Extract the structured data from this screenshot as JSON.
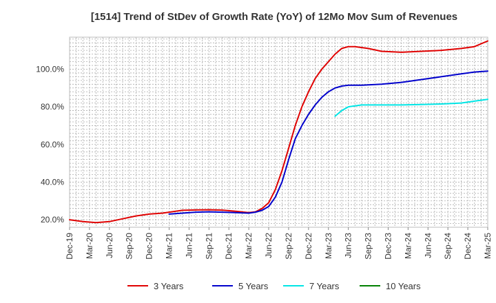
{
  "chart_data": {
    "type": "line",
    "title": "[1514]  Trend of StDev of Growth Rate (YoY) of 12Mo Mov Sum of Revenues",
    "xlabel": "",
    "ylabel": "",
    "x_ticks": [
      "Dec-19",
      "Mar-20",
      "Jun-20",
      "Sep-20",
      "Dec-20",
      "Mar-21",
      "Jun-21",
      "Sep-21",
      "Dec-21",
      "Mar-22",
      "Jun-22",
      "Sep-22",
      "Dec-22",
      "Mar-23",
      "Jun-23",
      "Sep-23",
      "Dec-23",
      "Mar-24",
      "Jun-24",
      "Sep-24",
      "Dec-24",
      "Mar-25"
    ],
    "y_ticks": [
      20,
      40,
      60,
      80,
      100
    ],
    "y_tick_labels": [
      "20.0%",
      "40.0%",
      "60.0%",
      "80.0%",
      "100.0%"
    ],
    "ylim": [
      16,
      117
    ],
    "x_unit": "months since Dec-19",
    "xlim": [
      0,
      63
    ],
    "grid": true,
    "legend_position": "bottom",
    "series": [
      {
        "name": "3 Years",
        "color": "#e00000",
        "points": [
          [
            0,
            20
          ],
          [
            2,
            19
          ],
          [
            4,
            18.5
          ],
          [
            6,
            19
          ],
          [
            8,
            20.5
          ],
          [
            10,
            22
          ],
          [
            12,
            23
          ],
          [
            14,
            23.5
          ],
          [
            15,
            24
          ],
          [
            17,
            25
          ],
          [
            19,
            25.2
          ],
          [
            21,
            25.3
          ],
          [
            23,
            25.1
          ],
          [
            25,
            24.5
          ],
          [
            27,
            23.8
          ],
          [
            28,
            24.2
          ],
          [
            29,
            26
          ],
          [
            30,
            29
          ],
          [
            31,
            36
          ],
          [
            32,
            46
          ],
          [
            33,
            58
          ],
          [
            34,
            70
          ],
          [
            35,
            80
          ],
          [
            36,
            88
          ],
          [
            37,
            95
          ],
          [
            38,
            100
          ],
          [
            39,
            104
          ],
          [
            40,
            108
          ],
          [
            41,
            111
          ],
          [
            42,
            112
          ],
          [
            43,
            112
          ],
          [
            45,
            111
          ],
          [
            47,
            109.5
          ],
          [
            50,
            109
          ],
          [
            53,
            109.5
          ],
          [
            56,
            110
          ],
          [
            59,
            111
          ],
          [
            61,
            112
          ],
          [
            63,
            115
          ]
        ]
      },
      {
        "name": "5 Years",
        "color": "#0000cc",
        "points": [
          [
            15,
            23
          ],
          [
            17,
            23.5
          ],
          [
            19,
            24
          ],
          [
            21,
            24.2
          ],
          [
            23,
            24
          ],
          [
            25,
            23.8
          ],
          [
            27,
            23.5
          ],
          [
            28,
            24
          ],
          [
            29,
            25
          ],
          [
            30,
            27
          ],
          [
            31,
            32
          ],
          [
            32,
            40
          ],
          [
            33,
            52
          ],
          [
            34,
            63
          ],
          [
            35,
            70
          ],
          [
            36,
            76
          ],
          [
            37,
            81
          ],
          [
            38,
            85
          ],
          [
            39,
            88
          ],
          [
            40,
            90
          ],
          [
            41,
            91
          ],
          [
            42,
            91.5
          ],
          [
            44,
            91.5
          ],
          [
            47,
            92
          ],
          [
            50,
            93
          ],
          [
            53,
            94.5
          ],
          [
            56,
            96
          ],
          [
            59,
            97.5
          ],
          [
            61,
            98.5
          ],
          [
            63,
            99
          ]
        ]
      },
      {
        "name": "7 Years",
        "color": "#00e5e5",
        "points": [
          [
            40,
            75
          ],
          [
            41,
            78
          ],
          [
            42,
            80
          ],
          [
            43,
            80.5
          ],
          [
            44,
            81
          ],
          [
            46,
            81
          ],
          [
            48,
            81
          ],
          [
            50,
            81
          ],
          [
            53,
            81.2
          ],
          [
            56,
            81.5
          ],
          [
            59,
            82
          ],
          [
            61,
            83
          ],
          [
            63,
            84
          ]
        ]
      },
      {
        "name": "10 Years",
        "color": "#008000",
        "points": []
      }
    ]
  }
}
